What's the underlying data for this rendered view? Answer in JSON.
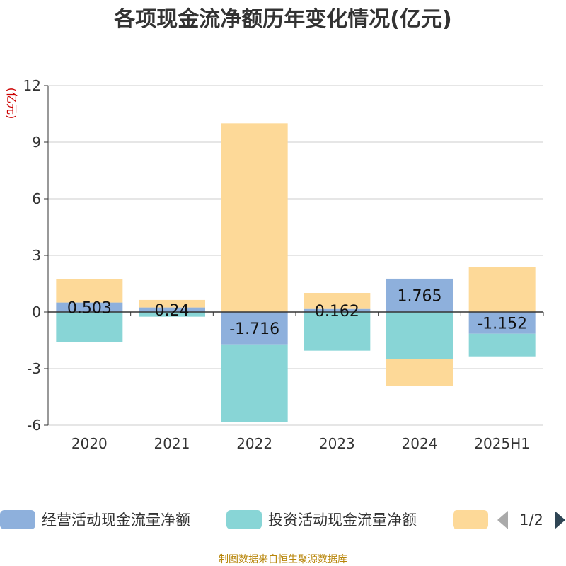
{
  "chart_data": {
    "type": "bar",
    "stacked": true,
    "title": "各项现金流净额历年变化情况(亿元)",
    "ylabel": "(亿元)",
    "categories": [
      "2020",
      "2021",
      "2022",
      "2023",
      "2024",
      "2025H1"
    ],
    "ylim": [
      -6,
      12
    ],
    "yticks": [
      12,
      9,
      6,
      3,
      0,
      -3,
      -6
    ],
    "grid": true,
    "series": [
      {
        "name": "经营活动现金流量净额",
        "color": "#8eb0dc",
        "values": [
          0.503,
          0.24,
          -1.716,
          0.162,
          1.765,
          -1.152
        ],
        "labels": [
          "0.503",
          "0.24",
          "-1.716",
          "0.162",
          "1.765",
          "-1.152"
        ]
      },
      {
        "name": "投资活动现金流量净额",
        "color": "#88d5d6",
        "values": [
          -1.6,
          -0.25,
          -4.1,
          -2.05,
          -2.5,
          -1.2
        ]
      },
      {
        "name": "",
        "color": "#fdd998",
        "values": [
          1.25,
          0.4,
          10.0,
          0.85,
          -1.4,
          2.4
        ]
      }
    ],
    "legend": {
      "position": "bottom",
      "page": "1/2"
    },
    "source": "制图数据来自恒生聚源数据库"
  }
}
